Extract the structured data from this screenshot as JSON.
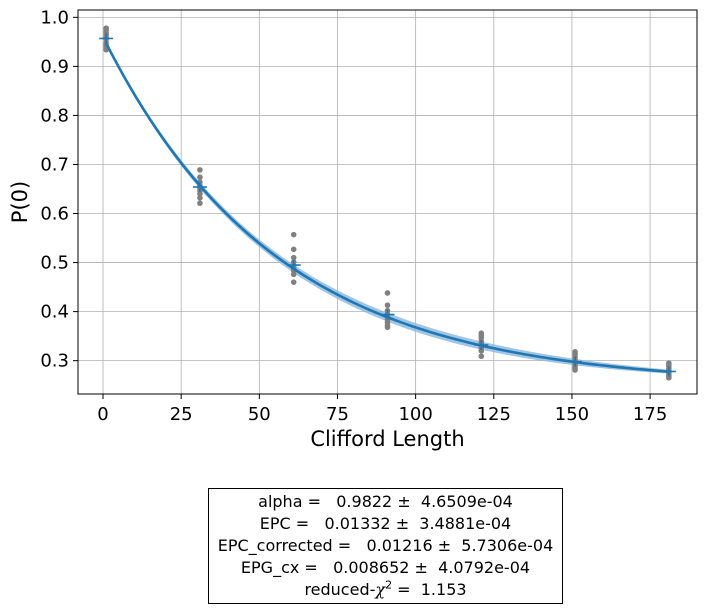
{
  "chart_data": {
    "type": "scatter",
    "title": "",
    "xlabel": "Clifford Length",
    "ylabel": "P(0)",
    "xlim": [
      -8,
      190
    ],
    "ylim": [
      0.232,
      1.015
    ],
    "xticks": [
      0,
      25,
      50,
      75,
      100,
      125,
      150,
      175
    ],
    "yticks": [
      0.3,
      0.4,
      0.5,
      0.6,
      0.7,
      0.8,
      0.9,
      1.0
    ],
    "grid": true,
    "colors": {
      "points": "#808080",
      "fit": "#1f77b4",
      "band": "#8fbbe0",
      "means": "#1f77b4",
      "grid": "#b0b0b0"
    },
    "samples": [
      {
        "x": 1,
        "y": [
          0.978,
          0.974,
          0.969,
          0.965,
          0.96,
          0.955,
          0.948,
          0.943,
          0.938,
          0.934
        ]
      },
      {
        "x": 31,
        "y": [
          0.689,
          0.674,
          0.664,
          0.657,
          0.652,
          0.646,
          0.64,
          0.632,
          0.621
        ]
      },
      {
        "x": 61,
        "y": [
          0.557,
          0.527,
          0.51,
          0.501,
          0.493,
          0.488,
          0.483,
          0.476,
          0.46
        ]
      },
      {
        "x": 91,
        "y": [
          0.438,
          0.413,
          0.402,
          0.395,
          0.389,
          0.384,
          0.378,
          0.372,
          0.368
        ]
      },
      {
        "x": 121,
        "y": [
          0.356,
          0.351,
          0.346,
          0.339,
          0.334,
          0.33,
          0.326,
          0.32,
          0.309
        ]
      },
      {
        "x": 151,
        "y": [
          0.318,
          0.313,
          0.307,
          0.301,
          0.296,
          0.292,
          0.289,
          0.285,
          0.281
        ]
      },
      {
        "x": 181,
        "y": [
          0.295,
          0.291,
          0.288,
          0.283,
          0.279,
          0.276,
          0.273,
          0.269,
          0.265
        ]
      }
    ],
    "means": [
      {
        "x": 1,
        "y": 0.957
      },
      {
        "x": 31,
        "y": 0.654
      },
      {
        "x": 61,
        "y": 0.495
      },
      {
        "x": 91,
        "y": 0.394
      },
      {
        "x": 121,
        "y": 0.332
      },
      {
        "x": 151,
        "y": 0.298
      },
      {
        "x": 181,
        "y": 0.278
      }
    ],
    "fit": {
      "model": "A*alpha^x + B",
      "A": 0.71,
      "alpha": 0.9822,
      "B": 0.25
    }
  },
  "fit_results": {
    "alpha_line": "alpha =   0.9822 ±  4.6509e-04",
    "epc_line": "EPC =   0.01332 ±  3.4881e-04",
    "epc_corrected_line": "EPC_corrected =   0.01216 ±  5.7306e-04",
    "epg_cx_line": "EPG_cx =   0.008652 ±  4.0792e-04",
    "reduced_chi_prefix": "reduced-",
    "reduced_chi_symbol": "χ",
    "reduced_chi_exp": "2",
    "reduced_chi_value": " =  1.153"
  }
}
